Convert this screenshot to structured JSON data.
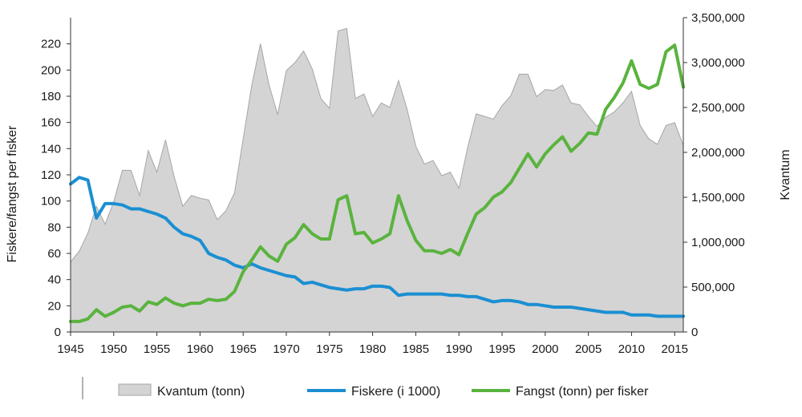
{
  "chart_data": {
    "type": "area+line",
    "title": "",
    "ylabel_left": "Fiskere/fangst per fisker",
    "ylabel_right": "Kvantum",
    "xlim": [
      1945,
      2016
    ],
    "ylim_left": [
      0,
      240
    ],
    "ylim_right": [
      0,
      3500000
    ],
    "x_ticks": [
      1945,
      1950,
      1955,
      1960,
      1965,
      1970,
      1975,
      1980,
      1985,
      1990,
      1995,
      2000,
      2005,
      2010,
      2015
    ],
    "y_left_ticks": [
      0,
      20,
      40,
      60,
      80,
      100,
      120,
      140,
      160,
      180,
      200,
      220
    ],
    "y_left_tick_labels": [
      "0",
      "20",
      "40",
      "60",
      "80",
      "100",
      "120",
      "140",
      "160",
      "180",
      "200",
      "220"
    ],
    "y_right_ticks": [
      0,
      500000,
      1000000,
      1500000,
      2000000,
      2500000,
      3000000,
      3500000
    ],
    "y_right_tick_labels": [
      "0",
      "500,000",
      "1,000,000",
      "1,500,000",
      "2,000,000",
      "2,500,000",
      "3,000,000",
      "3,500,000"
    ],
    "grid": false,
    "legend_position": "bottom",
    "colors": {
      "area_fill": "#d4d4d4",
      "area_stroke": "#a6a6a6",
      "fiskere": "#1b8fd2",
      "fangst": "#5ab33e",
      "axis": "#333333"
    },
    "x": [
      1945,
      1946,
      1947,
      1948,
      1949,
      1950,
      1951,
      1952,
      1953,
      1954,
      1955,
      1956,
      1957,
      1958,
      1959,
      1960,
      1961,
      1962,
      1963,
      1964,
      1965,
      1966,
      1967,
      1968,
      1969,
      1970,
      1971,
      1972,
      1973,
      1974,
      1975,
      1976,
      1977,
      1978,
      1979,
      1980,
      1981,
      1982,
      1983,
      1984,
      1985,
      1986,
      1987,
      1988,
      1989,
      1990,
      1991,
      1992,
      1993,
      1994,
      1995,
      1996,
      1997,
      1998,
      1999,
      2000,
      2001,
      2002,
      2003,
      2004,
      2005,
      2006,
      2007,
      2008,
      2009,
      2010,
      2011,
      2012,
      2013,
      2014,
      2015,
      2016
    ],
    "series": [
      {
        "name": "Kvantum (tonn)",
        "axis": "right",
        "kind": "area",
        "values": [
          780000,
          900000,
          1100000,
          1400000,
          1200000,
          1450000,
          1800000,
          1800000,
          1520000,
          2020000,
          1780000,
          2140000,
          1730000,
          1400000,
          1520000,
          1490000,
          1470000,
          1250000,
          1350000,
          1550000,
          2150000,
          2750000,
          3210000,
          2750000,
          2420000,
          2910000,
          3000000,
          3130000,
          2930000,
          2600000,
          2490000,
          3350000,
          3380000,
          2600000,
          2650000,
          2400000,
          2550000,
          2500000,
          2800000,
          2480000,
          2070000,
          1870000,
          1910000,
          1740000,
          1780000,
          1600000,
          2050000,
          2430000,
          2400000,
          2370000,
          2520000,
          2630000,
          2870000,
          2870000,
          2620000,
          2700000,
          2690000,
          2750000,
          2550000,
          2530000,
          2400000,
          2290000,
          2390000,
          2450000,
          2550000,
          2680000,
          2300000,
          2150000,
          2090000,
          2300000,
          2330000,
          2080000
        ]
      },
      {
        "name": "Fiskere (i 1000)",
        "axis": "left",
        "kind": "line",
        "values": [
          113,
          118,
          116,
          87,
          98,
          98,
          97,
          94,
          94,
          92,
          90,
          87,
          80,
          75,
          73,
          70,
          60,
          57,
          55,
          51,
          49,
          52,
          49,
          47,
          45,
          43,
          42,
          37,
          38,
          36,
          34,
          33,
          32,
          33,
          33,
          35,
          35,
          34,
          28,
          29,
          29,
          29,
          29,
          29,
          28,
          28,
          27,
          27,
          25,
          23,
          24,
          24,
          23,
          21,
          21,
          20,
          19,
          19,
          19,
          18,
          17,
          16,
          15,
          15,
          15,
          13,
          13,
          13,
          12,
          12,
          12,
          12
        ]
      },
      {
        "name": "Fangst (tonn) per fisker",
        "axis": "left",
        "kind": "line",
        "values": [
          8,
          8,
          10,
          17,
          12,
          15,
          19,
          20,
          16,
          23,
          21,
          26,
          22,
          20,
          22,
          22,
          25,
          24,
          25,
          31,
          46,
          55,
          65,
          58,
          54,
          67,
          72,
          82,
          75,
          71,
          71,
          101,
          104,
          75,
          76,
          68,
          71,
          75,
          104,
          85,
          70,
          62,
          62,
          60,
          63,
          59,
          75,
          90,
          95,
          103,
          107,
          114,
          125,
          136,
          126,
          136,
          143,
          149,
          138,
          144,
          152,
          151,
          170,
          179,
          190,
          207,
          189,
          186,
          189,
          214,
          219,
          187
        ]
      }
    ],
    "legend": [
      {
        "label": "Kvantum (tonn)",
        "kind": "area"
      },
      {
        "label": "Fiskere (i 1000)",
        "kind": "line"
      },
      {
        "label": "Fangst (tonn) per fisker",
        "kind": "line"
      }
    ]
  }
}
